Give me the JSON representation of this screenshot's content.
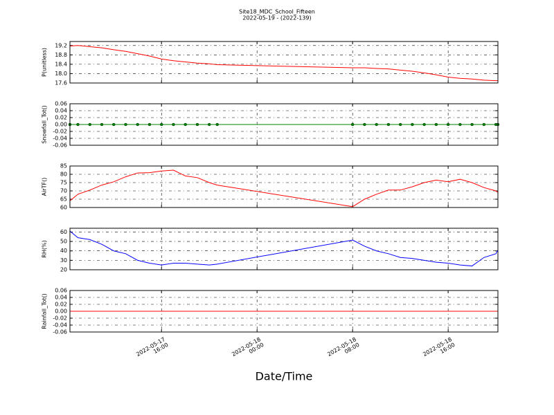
{
  "title": "Site18_MDC_School_Fifteen",
  "subtitle": "2022-05-19 - (2022-139)",
  "xlabel": "Date/Time",
  "xlim": [
    "2022-05-17 08:20",
    "2022-05-18 20:10"
  ],
  "xticks": [
    {
      "value": "2022-05-17 16:00",
      "label": "2022-05-17\n16:00"
    },
    {
      "value": "2022-05-18 00:00",
      "label": "2022-05-18\n00:00"
    },
    {
      "value": "2022-05-18 08:00",
      "label": "2022-05-18\n08:00"
    },
    {
      "value": "2022-05-18 16:00",
      "label": "2022-05-18\n16:00"
    }
  ],
  "x": [
    "2022-05-17 08:20",
    "2022-05-17 09:00",
    "2022-05-17 10:00",
    "2022-05-17 11:00",
    "2022-05-17 12:00",
    "2022-05-17 13:00",
    "2022-05-17 14:00",
    "2022-05-17 15:00",
    "2022-05-17 16:00",
    "2022-05-17 17:00",
    "2022-05-17 18:00",
    "2022-05-17 19:00",
    "2022-05-17 20:00",
    "2022-05-17 20:40",
    "2022-05-18 08:00",
    "2022-05-18 09:00",
    "2022-05-18 10:00",
    "2022-05-18 11:00",
    "2022-05-18 12:00",
    "2022-05-18 13:00",
    "2022-05-18 14:00",
    "2022-05-18 15:00",
    "2022-05-18 16:00",
    "2022-05-18 17:00",
    "2022-05-18 18:00",
    "2022-05-18 19:00",
    "2022-05-18 20:00",
    "2022-05-18 20:10"
  ],
  "chart_data": [
    {
      "type": "line",
      "ylabel": "P(unitless)",
      "color": "#ff0000",
      "markers": false,
      "grid": true,
      "values": [
        19.18,
        19.2,
        19.15,
        19.1,
        19.02,
        18.95,
        18.85,
        18.75,
        18.62,
        18.55,
        18.5,
        18.45,
        18.42,
        18.38,
        18.25,
        18.25,
        18.22,
        18.2,
        18.15,
        18.1,
        18.03,
        17.95,
        17.85,
        17.8,
        17.77,
        17.72,
        17.7,
        17.7
      ],
      "ylim": [
        17.6,
        19.37
      ],
      "yticks": [
        17.6,
        {
          "value": 18,
          "label": "18.0"
        },
        18.4,
        18.8,
        19.2
      ]
    },
    {
      "type": "line",
      "ylabel": "Snowfall_Tot()",
      "color": "#008000",
      "markers": true,
      "grid": true,
      "values": [
        0,
        0,
        0,
        0,
        0,
        0,
        0,
        0,
        0,
        0,
        0,
        0,
        0,
        0,
        0,
        0,
        0,
        0,
        0,
        0,
        0,
        0,
        0,
        0,
        0,
        0,
        0,
        0
      ],
      "ylim": [
        -0.06,
        0.06
      ],
      "yticks": [
        -0.06,
        -0.04,
        -0.02,
        {
          "value": 0,
          "label": "0.00"
        },
        0.02,
        0.04,
        0.06
      ]
    },
    {
      "type": "line",
      "ylabel": "AirTF()",
      "color": "#ff0000",
      "markers": false,
      "grid": true,
      "values": [
        64,
        68,
        70.5,
        73.5,
        75.5,
        78.5,
        80.8,
        81,
        82,
        82.5,
        79,
        78,
        75,
        73.5,
        60.5,
        65,
        68,
        70.5,
        70.5,
        72.5,
        75,
        76.5,
        75.5,
        77,
        75,
        72,
        70,
        69
      ],
      "ylim": [
        60,
        85
      ],
      "yticks": [
        60,
        65,
        70,
        75,
        80,
        85
      ]
    },
    {
      "type": "line",
      "ylabel": "RH(%)",
      "color": "#0000ff",
      "markers": false,
      "grid": true,
      "values": [
        61,
        54,
        52,
        47,
        40,
        37,
        30,
        27,
        25,
        27,
        27,
        26,
        25,
        26,
        51.5,
        45,
        40,
        37,
        33,
        32,
        30,
        28,
        27,
        25,
        24,
        33,
        37,
        41
      ],
      "ylim": [
        20,
        64
      ],
      "yticks": [
        20,
        30,
        40,
        50,
        60
      ]
    },
    {
      "type": "line",
      "ylabel": "Rainfall_Tot()",
      "color": "#ff0000",
      "markers": false,
      "grid": true,
      "values": [
        0,
        0,
        0,
        0,
        0,
        0,
        0,
        0,
        0,
        0,
        0,
        0,
        0,
        0,
        0,
        0,
        0,
        0,
        0,
        0,
        0,
        0,
        0,
        0,
        0,
        0,
        0,
        0
      ],
      "ylim": [
        -0.06,
        0.06
      ],
      "yticks": [
        -0.06,
        -0.04,
        -0.02,
        {
          "value": 0,
          "label": "0.00"
        },
        0.02,
        0.04,
        0.06
      ]
    }
  ]
}
